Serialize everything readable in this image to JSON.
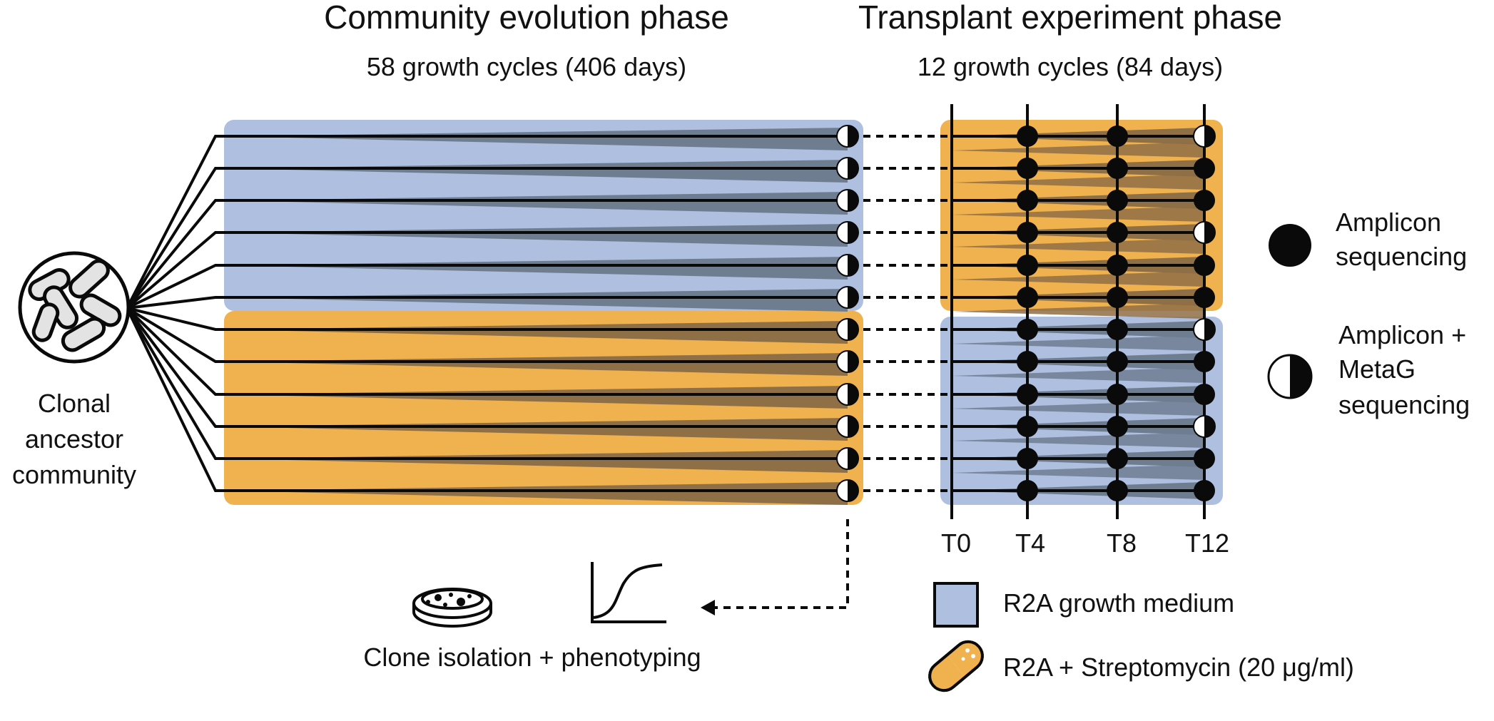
{
  "phases": {
    "evolution": {
      "title": "Community evolution phase",
      "subtitle": "58 growth cycles (406 days)"
    },
    "transplant": {
      "title": "Transplant experiment phase",
      "subtitle": "12 growth cycles (84 days)"
    }
  },
  "ancestor_label": [
    "Clonal",
    "ancestor",
    "community"
  ],
  "timepoints": [
    "T0",
    "T4",
    "T8",
    "T12"
  ],
  "clone_label": "Clone isolation + phenotyping",
  "legend": {
    "amplicon": [
      "Amplicon",
      "sequencing"
    ],
    "metag": [
      "Amplicon +",
      "MetaG",
      "sequencing"
    ],
    "r2a": "R2A growth medium",
    "strep": "R2A + Streptomycin (20 μg/ml)"
  },
  "colors": {
    "r2a_blue": "#aebfe0",
    "strep_orange": "#efb24e",
    "wedge_blue": "#6f7d91",
    "wedge_orange": "#8f6f46",
    "black": "#0a0a0a"
  },
  "icons": {
    "ancestor": "bacteria-community-icon",
    "petri": "petri-dish-icon",
    "growth": "growth-curve-icon",
    "pill": "antibiotic-pill-icon"
  },
  "lines": {
    "count": 12,
    "r2a_evolved": 6,
    "strep_evolved": 6
  }
}
